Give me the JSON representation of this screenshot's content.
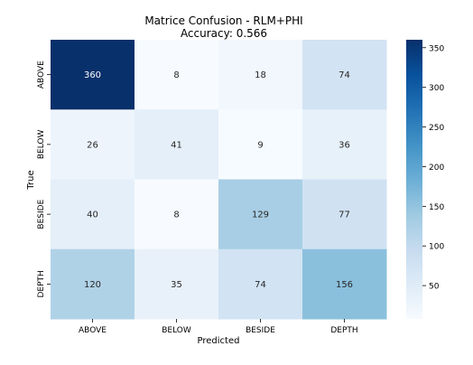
{
  "chart_data": {
    "type": "heatmap",
    "title": "Matrice Confusion - RLM+PHI",
    "subtitle": "Accuracy: 0.566",
    "xlabel": "Predicted",
    "ylabel": "True",
    "x_categories": [
      "ABOVE",
      "BELOW",
      "BESIDE",
      "DEPTH"
    ],
    "y_categories": [
      "ABOVE",
      "BELOW",
      "BESIDE",
      "DEPTH"
    ],
    "values": [
      [
        360,
        8,
        18,
        74
      ],
      [
        26,
        41,
        9,
        36
      ],
      [
        40,
        8,
        129,
        77
      ],
      [
        120,
        35,
        74,
        156
      ]
    ],
    "colormap": "Blues",
    "value_range": [
      8,
      360
    ],
    "colorbar_ticks": [
      50,
      100,
      150,
      200,
      250,
      300,
      350
    ],
    "grid": false,
    "annotations": true
  }
}
